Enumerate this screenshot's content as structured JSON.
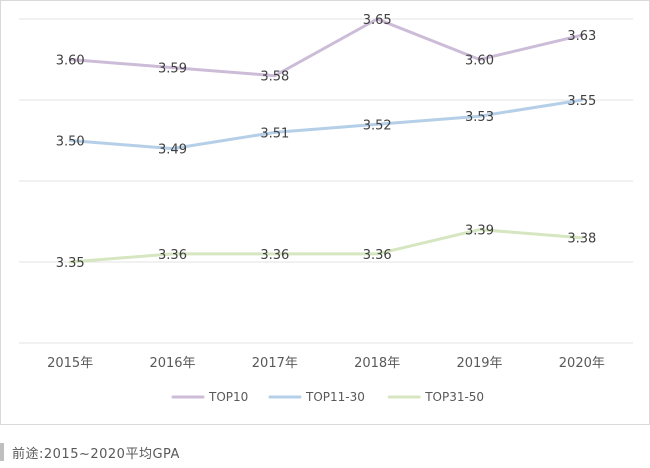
{
  "chart_data": {
    "type": "line",
    "categories": [
      "2015年",
      "2016年",
      "2017年",
      "2018年",
      "2019年",
      "2020年"
    ],
    "series": [
      {
        "name": "TOP10",
        "color": "#cdbcd8",
        "values": [
          3.6,
          3.59,
          3.58,
          3.65,
          3.6,
          3.63
        ]
      },
      {
        "name": "TOP11-30",
        "color": "#b5cfe8",
        "values": [
          3.5,
          3.49,
          3.51,
          3.52,
          3.53,
          3.55
        ]
      },
      {
        "name": "TOP31-50",
        "color": "#d5e6c0",
        "values": [
          3.35,
          3.36,
          3.36,
          3.36,
          3.39,
          3.38
        ]
      }
    ],
    "ylim": [
      3.25,
      3.65
    ],
    "grid": true,
    "legend": "bottom"
  },
  "caption": "前途:2015~2020平均GPA"
}
